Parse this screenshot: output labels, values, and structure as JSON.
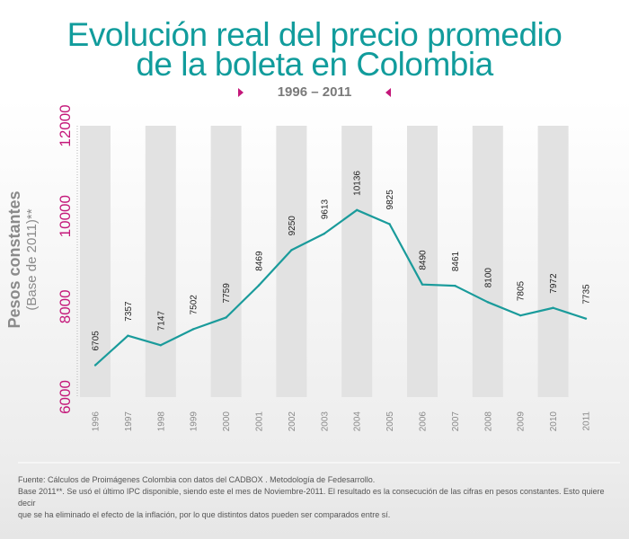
{
  "header": {
    "title_line1": "Evolución real del precio promedio",
    "title_line2": "de la boleta en Colombia",
    "period": "1996 – 2011"
  },
  "y_axis": {
    "label_line1": "Pesos constantes",
    "label_line2": "(Base de 2011)**"
  },
  "footer": {
    "line1": "Fuente: Cálculos de Proimágenes Colombia con datos del CADBOX . Metodología de Fedesarrollo.",
    "line2": "Base 2011**. Se usó el último IPC disponible, siendo este el mes de Noviembre-2011. El resultado es la consecución de las cifras en pesos constantes. Esto quiere decir",
    "line3": "que se ha eliminado el efecto de la inflación, por lo que distintos datos pueden ser comparados entre sí."
  },
  "colors": {
    "line": "#1a9b9b",
    "title": "#119c9c",
    "tick_accent": "#c4187a",
    "band": "#e2e2e2"
  },
  "chart_data": {
    "type": "line",
    "title": "Evolución real del precio promedio de la boleta en Colombia",
    "subtitle": "1996 – 2011",
    "ylabel": "Pesos constantes (Base de 2011)**",
    "xlabel": "",
    "ylim": [
      6000,
      12000
    ],
    "yticks": [
      6000,
      8000,
      10000,
      12000
    ],
    "categories": [
      "1996",
      "1997",
      "1998",
      "1999",
      "2000",
      "2001",
      "2002",
      "2003",
      "2004",
      "2005",
      "2006",
      "2007",
      "2008",
      "2009",
      "2010",
      "2011"
    ],
    "values": [
      6705,
      7357,
      7147,
      7502,
      7759,
      8469,
      9250,
      9613,
      10136,
      9825,
      8490,
      8461,
      8100,
      7805,
      7972,
      7735
    ],
    "grid": false,
    "legend": "none"
  }
}
